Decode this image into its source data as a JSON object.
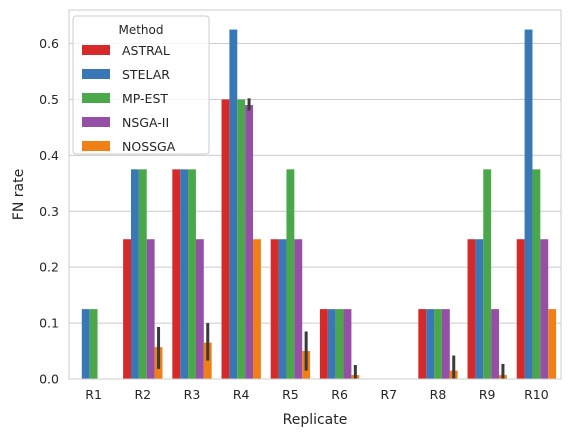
{
  "chart_data": {
    "type": "bar",
    "xlabel": "Replicate",
    "ylabel": "FN rate",
    "ylim": [
      0,
      0.66
    ],
    "yticks": [
      0.0,
      0.1,
      0.2,
      0.3,
      0.4,
      0.5,
      0.6
    ],
    "ytick_labels": [
      "0.0",
      "0.1",
      "0.2",
      "0.3",
      "0.4",
      "0.5",
      "0.6"
    ],
    "grid": "horizontal",
    "legend": {
      "title": "Method",
      "placement": "top-left"
    },
    "categories": [
      "R1",
      "R2",
      "R3",
      "R4",
      "R5",
      "R6",
      "R7",
      "R8",
      "R9",
      "R10"
    ],
    "series": [
      {
        "name": "ASTRAL",
        "color": "#d62a2a",
        "values": [
          0,
          0.25,
          0.375,
          0.5,
          0.25,
          0.125,
          0,
          0.125,
          0.25,
          0.25
        ],
        "error": [
          null,
          null,
          null,
          null,
          null,
          null,
          null,
          null,
          null,
          null
        ]
      },
      {
        "name": "STELAR",
        "color": "#3a78b5",
        "values": [
          0.125,
          0.375,
          0.375,
          0.625,
          0.25,
          0.125,
          0,
          0.125,
          0.25,
          0.625
        ],
        "error": [
          null,
          null,
          null,
          null,
          null,
          null,
          null,
          null,
          null,
          null
        ]
      },
      {
        "name": "MP-EST",
        "color": "#4aa84a",
        "values": [
          0.125,
          0.375,
          0.375,
          0.5,
          0.375,
          0.125,
          0,
          0.125,
          0.375,
          0.375
        ],
        "error": [
          null,
          null,
          null,
          null,
          null,
          null,
          null,
          null,
          null,
          null
        ]
      },
      {
        "name": "NSGA-II",
        "color": "#9550a6",
        "values": [
          0,
          0.25,
          0.25,
          0.49,
          0.25,
          0.125,
          0,
          0.125,
          0.125,
          0.25
        ],
        "error": [
          null,
          null,
          null,
          [
            0.48,
            0.502
          ],
          null,
          null,
          null,
          null,
          null,
          null
        ]
      },
      {
        "name": "NOSSGA",
        "color": "#f07f16",
        "values": [
          0,
          0.057,
          0.065,
          0.25,
          0.05,
          0.007,
          0,
          0.015,
          0.007,
          0.125
        ],
        "error": [
          null,
          [
            0.018,
            0.093
          ],
          [
            0.033,
            0.1
          ],
          null,
          [
            0.015,
            0.085
          ],
          [
            0,
            0.025
          ],
          null,
          [
            0,
            0.042
          ],
          [
            0,
            0.027
          ],
          null
        ]
      }
    ]
  }
}
